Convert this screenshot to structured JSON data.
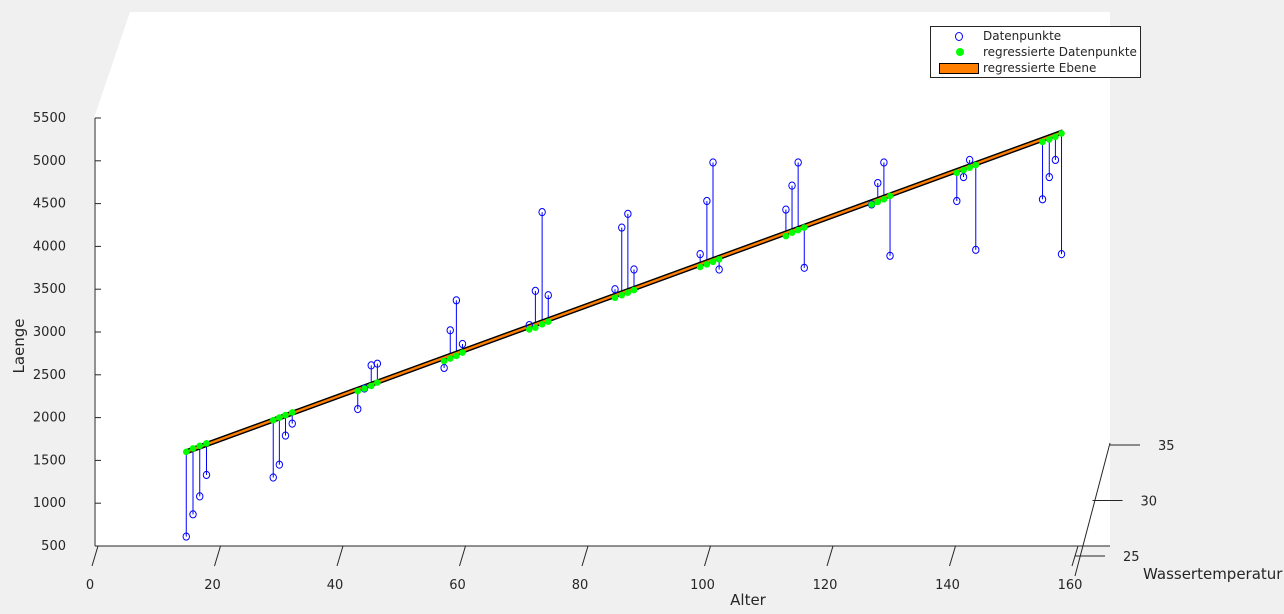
{
  "chart_data": {
    "type": "scatter",
    "title": "",
    "xlabel": "Alter",
    "ylabel": "Wassertemperatur",
    "zlabel": "Laenge",
    "xlim": [
      0,
      160
    ],
    "ylim": [
      25,
      35
    ],
    "zlim": [
      500,
      5500
    ],
    "xticks": [
      "0",
      "20",
      "40",
      "60",
      "80",
      "100",
      "120",
      "140",
      "160"
    ],
    "yticks": [
      "25",
      "30",
      "35"
    ],
    "zticks": [
      "500",
      "1000",
      "1500",
      "2000",
      "2500",
      "3000",
      "3500",
      "4000",
      "4500",
      "5000",
      "5500"
    ],
    "grid": false,
    "legend_position": "top-right",
    "colors": {
      "data_points": "#0000ff",
      "fitted_points": "#00ff00",
      "residual_lines": "#0000ff",
      "plane": "#ff7f00",
      "plane_edge": "#000000"
    },
    "legend": [
      {
        "label": "Datenpunkte",
        "marker": "open-circle"
      },
      {
        "label": "regressierte Datenpunkte",
        "marker": "filled-circle"
      },
      {
        "label": "regressierte Ebene",
        "marker": "patch"
      }
    ],
    "series": [
      {
        "name": "Datenpunkte",
        "points": [
          [
            14.9,
            610
          ],
          [
            16.0,
            870
          ],
          [
            17.1,
            1080
          ],
          [
            18.2,
            1330
          ],
          [
            29.1,
            1300
          ],
          [
            30.1,
            1450
          ],
          [
            31.1,
            1790
          ],
          [
            32.2,
            1930
          ],
          [
            42.9,
            2100
          ],
          [
            44.0,
            2340
          ],
          [
            45.1,
            2610
          ],
          [
            46.1,
            2630
          ],
          [
            57.0,
            2580
          ],
          [
            58.0,
            3020
          ],
          [
            59.0,
            3370
          ],
          [
            60.0,
            2860
          ],
          [
            70.9,
            3080
          ],
          [
            71.9,
            3480
          ],
          [
            73.0,
            4400
          ],
          [
            74.0,
            3430
          ],
          [
            84.9,
            3500
          ],
          [
            86.0,
            4220
          ],
          [
            87.0,
            4380
          ],
          [
            88.0,
            3730
          ],
          [
            98.8,
            3910
          ],
          [
            99.9,
            4530
          ],
          [
            100.9,
            4980
          ],
          [
            101.9,
            3730
          ],
          [
            112.8,
            4430
          ],
          [
            113.8,
            4710
          ],
          [
            114.8,
            4980
          ],
          [
            115.8,
            3750
          ],
          [
            126.8,
            4490
          ],
          [
            127.8,
            4740
          ],
          [
            128.8,
            4980
          ],
          [
            129.8,
            3890
          ],
          [
            140.7,
            4530
          ],
          [
            141.8,
            4810
          ],
          [
            142.8,
            5010
          ],
          [
            143.8,
            3960
          ],
          [
            154.7,
            4550
          ],
          [
            155.8,
            4810
          ],
          [
            156.8,
            5010
          ],
          [
            157.8,
            3910
          ]
        ]
      },
      {
        "name": "regressierte Datenpunkte",
        "points": [
          [
            14.9,
            1600
          ],
          [
            16.0,
            1640
          ],
          [
            17.1,
            1670
          ],
          [
            18.2,
            1700
          ],
          [
            29.1,
            1970
          ],
          [
            30.1,
            2000
          ],
          [
            31.1,
            2030
          ],
          [
            32.2,
            2060
          ],
          [
            42.9,
            2310
          ],
          [
            44.0,
            2340
          ],
          [
            45.1,
            2370
          ],
          [
            46.1,
            2410
          ],
          [
            57.0,
            2660
          ],
          [
            58.0,
            2690
          ],
          [
            59.0,
            2720
          ],
          [
            60.0,
            2760
          ],
          [
            70.9,
            3030
          ],
          [
            71.9,
            3050
          ],
          [
            73.0,
            3090
          ],
          [
            74.0,
            3120
          ],
          [
            84.9,
            3400
          ],
          [
            86.0,
            3430
          ],
          [
            87.0,
            3460
          ],
          [
            88.0,
            3490
          ],
          [
            98.8,
            3760
          ],
          [
            99.9,
            3790
          ],
          [
            100.9,
            3820
          ],
          [
            101.9,
            3850
          ],
          [
            112.8,
            4120
          ],
          [
            113.8,
            4160
          ],
          [
            114.8,
            4190
          ],
          [
            115.8,
            4220
          ],
          [
            126.8,
            4490
          ],
          [
            127.8,
            4520
          ],
          [
            128.8,
            4550
          ],
          [
            129.8,
            4590
          ],
          [
            140.7,
            4860
          ],
          [
            141.8,
            4890
          ],
          [
            142.8,
            4920
          ],
          [
            143.8,
            4950
          ],
          [
            154.7,
            5220
          ],
          [
            155.8,
            5250
          ],
          [
            156.8,
            5280
          ],
          [
            157.8,
            5320
          ]
        ]
      }
    ]
  }
}
